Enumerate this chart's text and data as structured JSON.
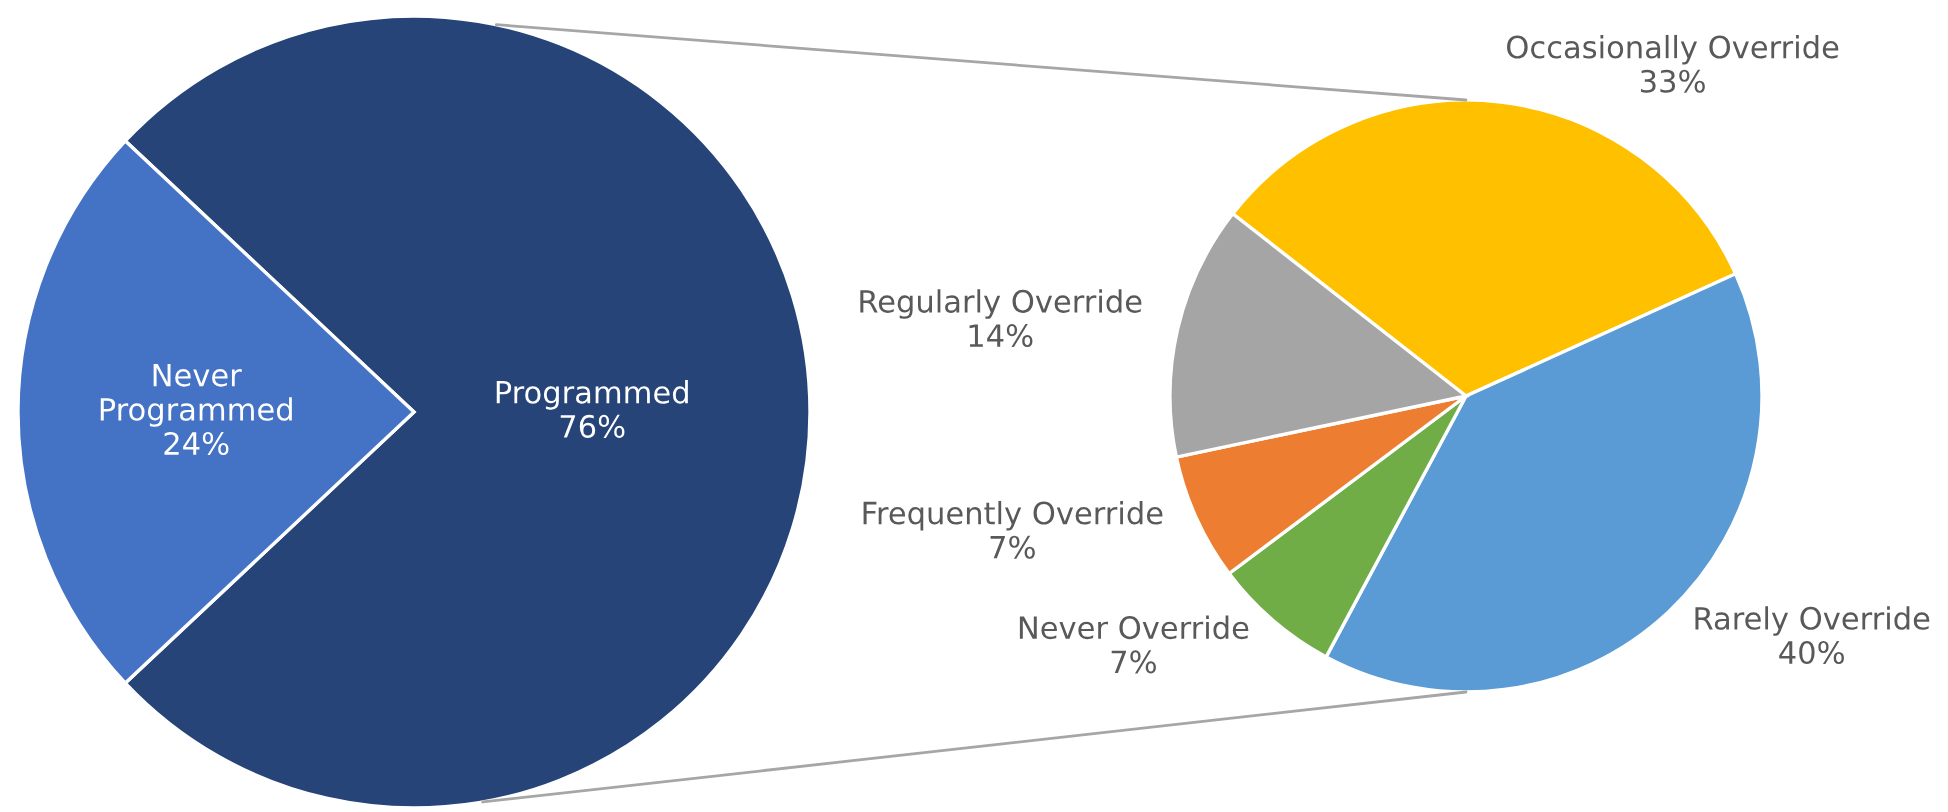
{
  "chart_data": [
    {
      "type": "pie",
      "categories": [
        "Programmed",
        "Never\nProgrammed"
      ],
      "values": [
        76,
        24
      ],
      "value_labels": [
        "76%",
        "24%"
      ],
      "colors": [
        "#264478",
        "#4472c4"
      ]
    },
    {
      "type": "pie",
      "categories": [
        "Occasionally Override",
        "Rarely Override",
        "Never Override",
        "Frequently Override",
        "Regularly Override"
      ],
      "values": [
        33,
        40,
        7,
        7,
        14
      ],
      "value_labels": [
        "33%",
        "40%",
        "7%",
        "7%",
        "14%"
      ],
      "colors": [
        "#ffc000",
        "#5b9bd5",
        "#70ad47",
        "#ed7d31",
        "#a5a5a5"
      ]
    }
  ]
}
